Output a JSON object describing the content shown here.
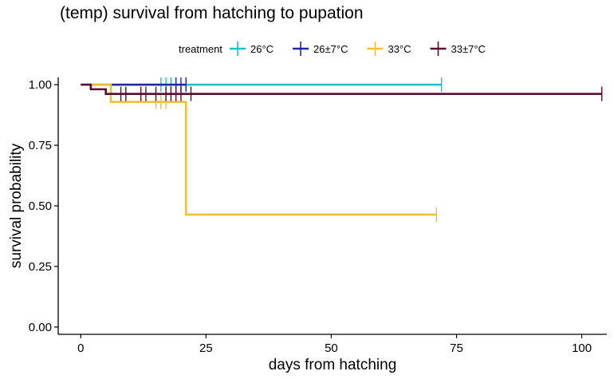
{
  "chart_data": {
    "type": "line",
    "title": "(temp) survival from hatching to pupation",
    "xlabel": "days from hatching",
    "ylabel": "survival probability",
    "xlim": [
      -4.5,
      105
    ],
    "ylim": [
      -0.03,
      1.03
    ],
    "xticks": [
      0,
      25,
      50,
      75,
      100
    ],
    "xtick_labels": [
      "0",
      "25",
      "50",
      "75",
      "100"
    ],
    "yticks": [
      0,
      0.25,
      0.5,
      0.75,
      1
    ],
    "ytick_labels": [
      "0.00",
      "0.25",
      "0.50",
      "0.75",
      "1.00"
    ],
    "grid": false,
    "legend_title": "treatment",
    "legend_position": "top",
    "series": [
      {
        "name": "26°C",
        "color": "#1fbfc7",
        "steps": [
          [
            0,
            1.0
          ],
          [
            72,
            1.0
          ]
        ],
        "censor": [
          16,
          17,
          18,
          19,
          21,
          72
        ]
      },
      {
        "name": "26±7°C",
        "color": "#2323a6",
        "steps": [
          [
            0,
            1.0
          ],
          [
            21,
            1.0
          ]
        ],
        "censor": [
          19,
          20,
          21
        ]
      },
      {
        "name": "33°C",
        "color": "#f2be3a",
        "steps": [
          [
            0,
            1.0
          ],
          [
            6,
            0.929
          ],
          [
            21,
            0.464
          ],
          [
            71,
            0.464
          ]
        ],
        "censor": [
          15,
          16,
          17,
          71
        ]
      },
      {
        "name": "33±7°C",
        "color": "#5c0a30",
        "steps": [
          [
            0,
            1.0
          ],
          [
            2,
            0.981
          ],
          [
            5,
            0.962
          ],
          [
            104,
            0.962
          ]
        ],
        "censor": [
          8,
          9,
          12,
          13,
          15,
          17,
          18,
          19,
          20,
          22,
          104
        ]
      }
    ]
  }
}
